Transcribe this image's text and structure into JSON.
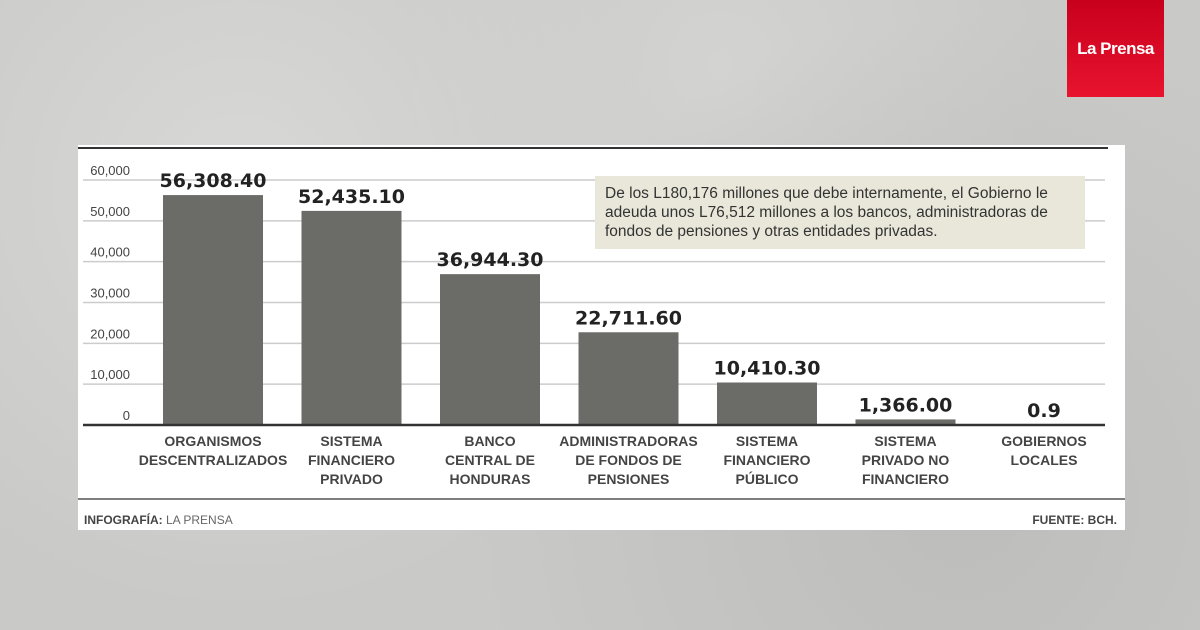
{
  "brand": {
    "logo": "La Prensa",
    "color": "#e0102a"
  },
  "note": "De los L180,176 millones que debe internamente, el Gobierno le adeuda unos L76,512 millones a los bancos, administradoras de fondos de pensiones y otras entidades privadas.",
  "footer": {
    "credit_label": "INFOGRAFÍA:",
    "credit_value": "LA PRENSA",
    "source": "FUENTE: BCH."
  },
  "chart_data": {
    "type": "bar",
    "title": "",
    "xlabel": "",
    "ylabel": "",
    "ylim": [
      0,
      60000
    ],
    "yticks": [
      "0",
      "10,000",
      "20,000",
      "30,000",
      "40,000",
      "50,000",
      "60,000"
    ],
    "grid": true,
    "bar_color": "#6b6b67",
    "categories": [
      [
        "ORGANISMOS",
        "DESCENTRALIZADOS"
      ],
      [
        "SISTEMA",
        "FINANCIERO",
        "PRIVADO"
      ],
      [
        "BANCO",
        "CENTRAL DE",
        "HONDURAS"
      ],
      [
        "ADMINISTRADORAS",
        "DE FONDOS DE",
        "PENSIONES"
      ],
      [
        "SISTEMA",
        "FINANCIERO",
        "PÚBLICO"
      ],
      [
        "SISTEMA",
        "PRIVADO NO",
        "FINANCIERO"
      ],
      [
        "GOBIERNOS",
        "LOCALES"
      ]
    ],
    "values": [
      56308.4,
      52435.1,
      36944.3,
      22711.6,
      10410.3,
      1366.0,
      0.9
    ],
    "labels": [
      "56,308.40",
      "52,435.10",
      "36,944.30",
      "22,711.60",
      "10,410.30",
      "1,366.00",
      "0.9"
    ]
  }
}
